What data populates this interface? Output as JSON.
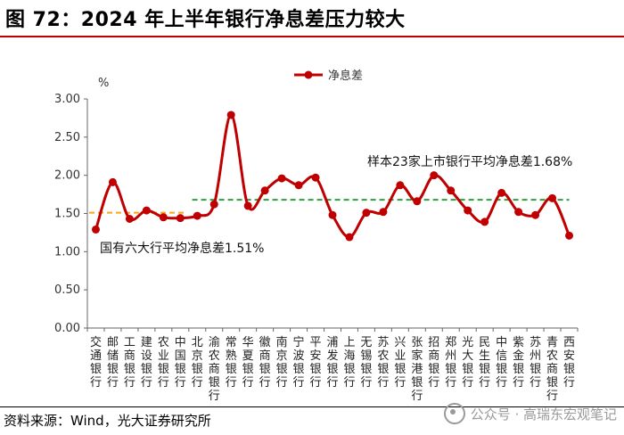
{
  "title": "图 72：2024 年上半年银行净息差压力较大",
  "source": "资料来源：Wind，光大证券研究所",
  "watermark": {
    "icon": "wechat-icon",
    "text": "公众号 · 高瑞东宏观笔记"
  },
  "colors": {
    "line": "#c00000",
    "big6_avg": "#f5a623",
    "listed_avg": "#2e9e3e",
    "accent": "#c00000"
  },
  "chart_data": {
    "type": "line",
    "title": "2024 年上半年银行净息差压力较大",
    "ylabel": "%",
    "ylim": [
      0,
      3
    ],
    "yticks": [
      "0.00",
      "0.50",
      "1.00",
      "1.50",
      "2.00",
      "2.50",
      "3.00"
    ],
    "legend": "净息差",
    "legend_position": "top-center",
    "categories": [
      "交通银行",
      "邮储银行",
      "工商银行",
      "建设银行",
      "农业银行",
      "中国银行",
      "北京银行",
      "渝农商银行",
      "常熟银行",
      "华夏银行",
      "徽商银行",
      "南京银行",
      "宁波银行",
      "平安银行",
      "浦发银行",
      "上海银行",
      "无锡银行",
      "苏农银行",
      "兴业银行",
      "张家港银行",
      "招商银行",
      "郑州银行",
      "光大银行",
      "民生银行",
      "中信银行",
      "紫金银行",
      "苏州银行",
      "青农商银行",
      "西安银行"
    ],
    "series": [
      {
        "name": "净息差",
        "values": [
          1.29,
          1.91,
          1.43,
          1.54,
          1.45,
          1.44,
          1.47,
          1.62,
          2.79,
          1.6,
          1.8,
          1.96,
          1.87,
          1.97,
          1.48,
          1.19,
          1.51,
          1.52,
          1.87,
          1.66,
          2.0,
          1.8,
          1.54,
          1.39,
          1.77,
          1.52,
          1.48,
          1.7,
          1.21
        ]
      }
    ],
    "reference_lines": [
      {
        "name": "big6_avg",
        "value": 1.51,
        "from_index": 0,
        "to_index": 5,
        "label": "国有六大行平均净息差1.51%"
      },
      {
        "name": "listed_avg",
        "value": 1.68,
        "from_index": 6,
        "to_index": 28,
        "label": "样本23家上市银行平均净息差1.68%"
      }
    ]
  }
}
